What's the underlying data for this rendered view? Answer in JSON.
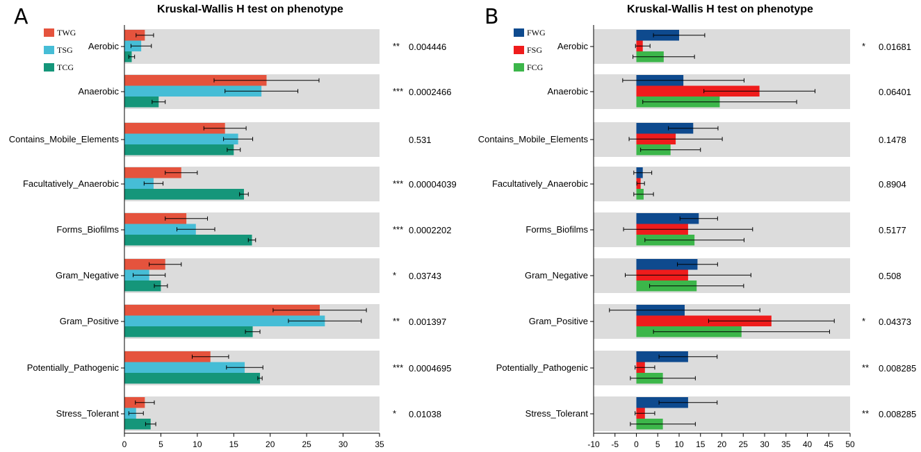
{
  "chart_data": [
    {
      "panel": "A",
      "type": "bar",
      "orientation": "horizontal",
      "title": "Kruskal-Wallis H test on phenotype",
      "categories": [
        "Aerobic",
        "Anaerobic",
        "Contains_Mobile_Elements",
        "Facultatively_Anaerobic",
        "Forms_Biofilms",
        "Gram_Negative",
        "Gram_Positive",
        "Potentially_Pathogenic",
        "Stress_Tolerant"
      ],
      "series": [
        {
          "name": "TWG",
          "color": "#e5533d",
          "values": [
            2.8,
            19.5,
            13.8,
            7.8,
            8.5,
            5.6,
            26.8,
            11.8,
            2.8
          ],
          "errors": [
            1.2,
            7.2,
            2.9,
            2.2,
            2.9,
            2.2,
            6.4,
            2.5,
            1.3
          ]
        },
        {
          "name": "TSG",
          "color": "#46bdd6",
          "values": [
            2.3,
            18.8,
            15.6,
            4.0,
            9.8,
            3.4,
            27.5,
            16.5,
            1.6
          ],
          "errors": [
            1.4,
            5.0,
            2.0,
            1.3,
            2.6,
            2.2,
            5.0,
            2.5,
            1.0
          ]
        },
        {
          "name": "TCG",
          "color": "#15967a",
          "values": [
            1.0,
            4.7,
            15.0,
            16.4,
            17.5,
            5.0,
            17.6,
            18.6,
            3.6
          ],
          "errors": [
            0.4,
            0.9,
            0.9,
            0.6,
            0.5,
            0.9,
            1.0,
            0.3,
            0.7
          ]
        }
      ],
      "significance": [
        "**",
        "***",
        "",
        "***",
        "***",
        "*",
        "**",
        "***",
        "*"
      ],
      "p_values": [
        "0.004446",
        "0.0002466",
        "0.531",
        "0.00004039",
        "0.0002202",
        "0.03743",
        "0.001397",
        "0.0004695",
        "0.01038"
      ],
      "xlim": [
        0,
        35
      ],
      "xticks": [
        "0",
        "5",
        "10",
        "15",
        "20",
        "25",
        "30",
        "35"
      ],
      "band_color": "#dcdcdc"
    },
    {
      "panel": "B",
      "type": "bar",
      "orientation": "horizontal",
      "title": "Kruskal-Wallis H test on phenotype",
      "categories": [
        "Aerobic",
        "Anaerobic",
        "Contains_Mobile_Elements",
        "Facultatively_Anaerobic",
        "Forms_Biofilms",
        "Gram_Negative",
        "Gram_Positive",
        "Potentially_Pathogenic",
        "Stress_Tolerant"
      ],
      "series": [
        {
          "name": "FWG",
          "color": "#0e4a8e",
          "values": [
            10.0,
            11.0,
            13.3,
            1.5,
            14.6,
            14.3,
            11.3,
            12.1,
            12.1
          ],
          "errors": [
            6.0,
            14.2,
            5.8,
            2.1,
            4.4,
            4.7,
            17.6,
            6.8,
            6.8
          ]
        },
        {
          "name": "FSG",
          "color": "#ef1c1c",
          "values": [
            1.5,
            28.8,
            9.2,
            1.0,
            12.1,
            12.1,
            31.6,
            2.0,
            2.0
          ],
          "errors": [
            1.7,
            13.0,
            10.9,
            0.9,
            15.1,
            14.7,
            14.7,
            2.3,
            2.3
          ]
        },
        {
          "name": "FCG",
          "color": "#3cb64a",
          "values": [
            6.4,
            19.5,
            8.0,
            1.7,
            13.6,
            14.1,
            24.6,
            6.2,
            6.2
          ],
          "errors": [
            7.2,
            18.0,
            7.0,
            2.3,
            11.6,
            11.0,
            20.6,
            7.6,
            7.6
          ]
        }
      ],
      "significance": [
        "*",
        "",
        "",
        "",
        "",
        "",
        "*",
        "**",
        "**"
      ],
      "sig_color": "#7b3f98",
      "p_values": [
        "0.01681",
        "0.06401",
        "0.1478",
        "0.8904",
        "0.5177",
        "0.508",
        "0.04373",
        "0.008285",
        "0.008285"
      ],
      "xlim": [
        -10,
        50
      ],
      "xticks": [
        "-10",
        "-5",
        "0",
        "5",
        "10",
        "15",
        "20",
        "25",
        "30",
        "35",
        "40",
        "45",
        "50"
      ],
      "band_color": "#dcdcdc"
    }
  ]
}
